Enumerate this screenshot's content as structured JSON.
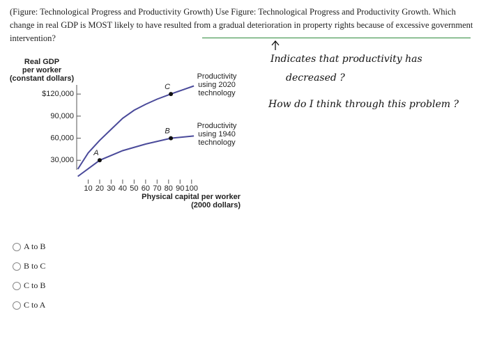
{
  "question": "(Figure: Technological Progress and Productivity Growth) Use Figure: Technological Progress and Productivity Growth. Which change in real GDP is MOST likely to have resulted from a gradual deterioration in property rights because of excessive government intervention?",
  "figure": {
    "y_axis_title": [
      "Real GDP",
      "per worker",
      "(constant dollars)"
    ],
    "x_axis_title": [
      "Physical capital per worker",
      "(2000 dollars)"
    ],
    "xlim": [
      0,
      105
    ],
    "ylim": [
      0,
      140000
    ],
    "xticks": [
      10,
      20,
      30,
      40,
      50,
      60,
      70,
      80,
      90,
      100
    ],
    "yticks": [
      {
        "value": 30000,
        "label": "30,000"
      },
      {
        "value": 60000,
        "label": "60,000"
      },
      {
        "value": 90000,
        "label": "90,000"
      },
      {
        "value": 120000,
        "label": "$120,000"
      }
    ],
    "curves": [
      {
        "name": [
          "Productivity",
          "using 2020",
          "technology"
        ],
        "color": "#4a4a9a",
        "x": [
          1,
          10,
          20,
          30,
          40,
          50,
          60,
          70,
          82,
          102
        ],
        "y": [
          18000,
          40000,
          57000,
          72000,
          87000,
          98000,
          106000,
          113000,
          120000,
          131000
        ]
      },
      {
        "name": [
          "Productivity",
          "using 1940",
          "technology"
        ],
        "color": "#4a4a9a",
        "x": [
          1,
          20,
          40,
          60,
          82,
          102
        ],
        "y": [
          8000,
          30000,
          43000,
          52000,
          60000,
          63000
        ]
      }
    ],
    "points": [
      {
        "label": "A",
        "x": 20,
        "y": 30000
      },
      {
        "label": "B",
        "x": 82,
        "y": 60000
      },
      {
        "label": "C",
        "x": 82,
        "y": 120000
      }
    ]
  },
  "notes": [
    "Indicates that productivity has",
    "decreased ?",
    "How do I think through this problem ?"
  ],
  "options": [
    "A to B",
    "B to C",
    "C to B",
    "C to A"
  ]
}
